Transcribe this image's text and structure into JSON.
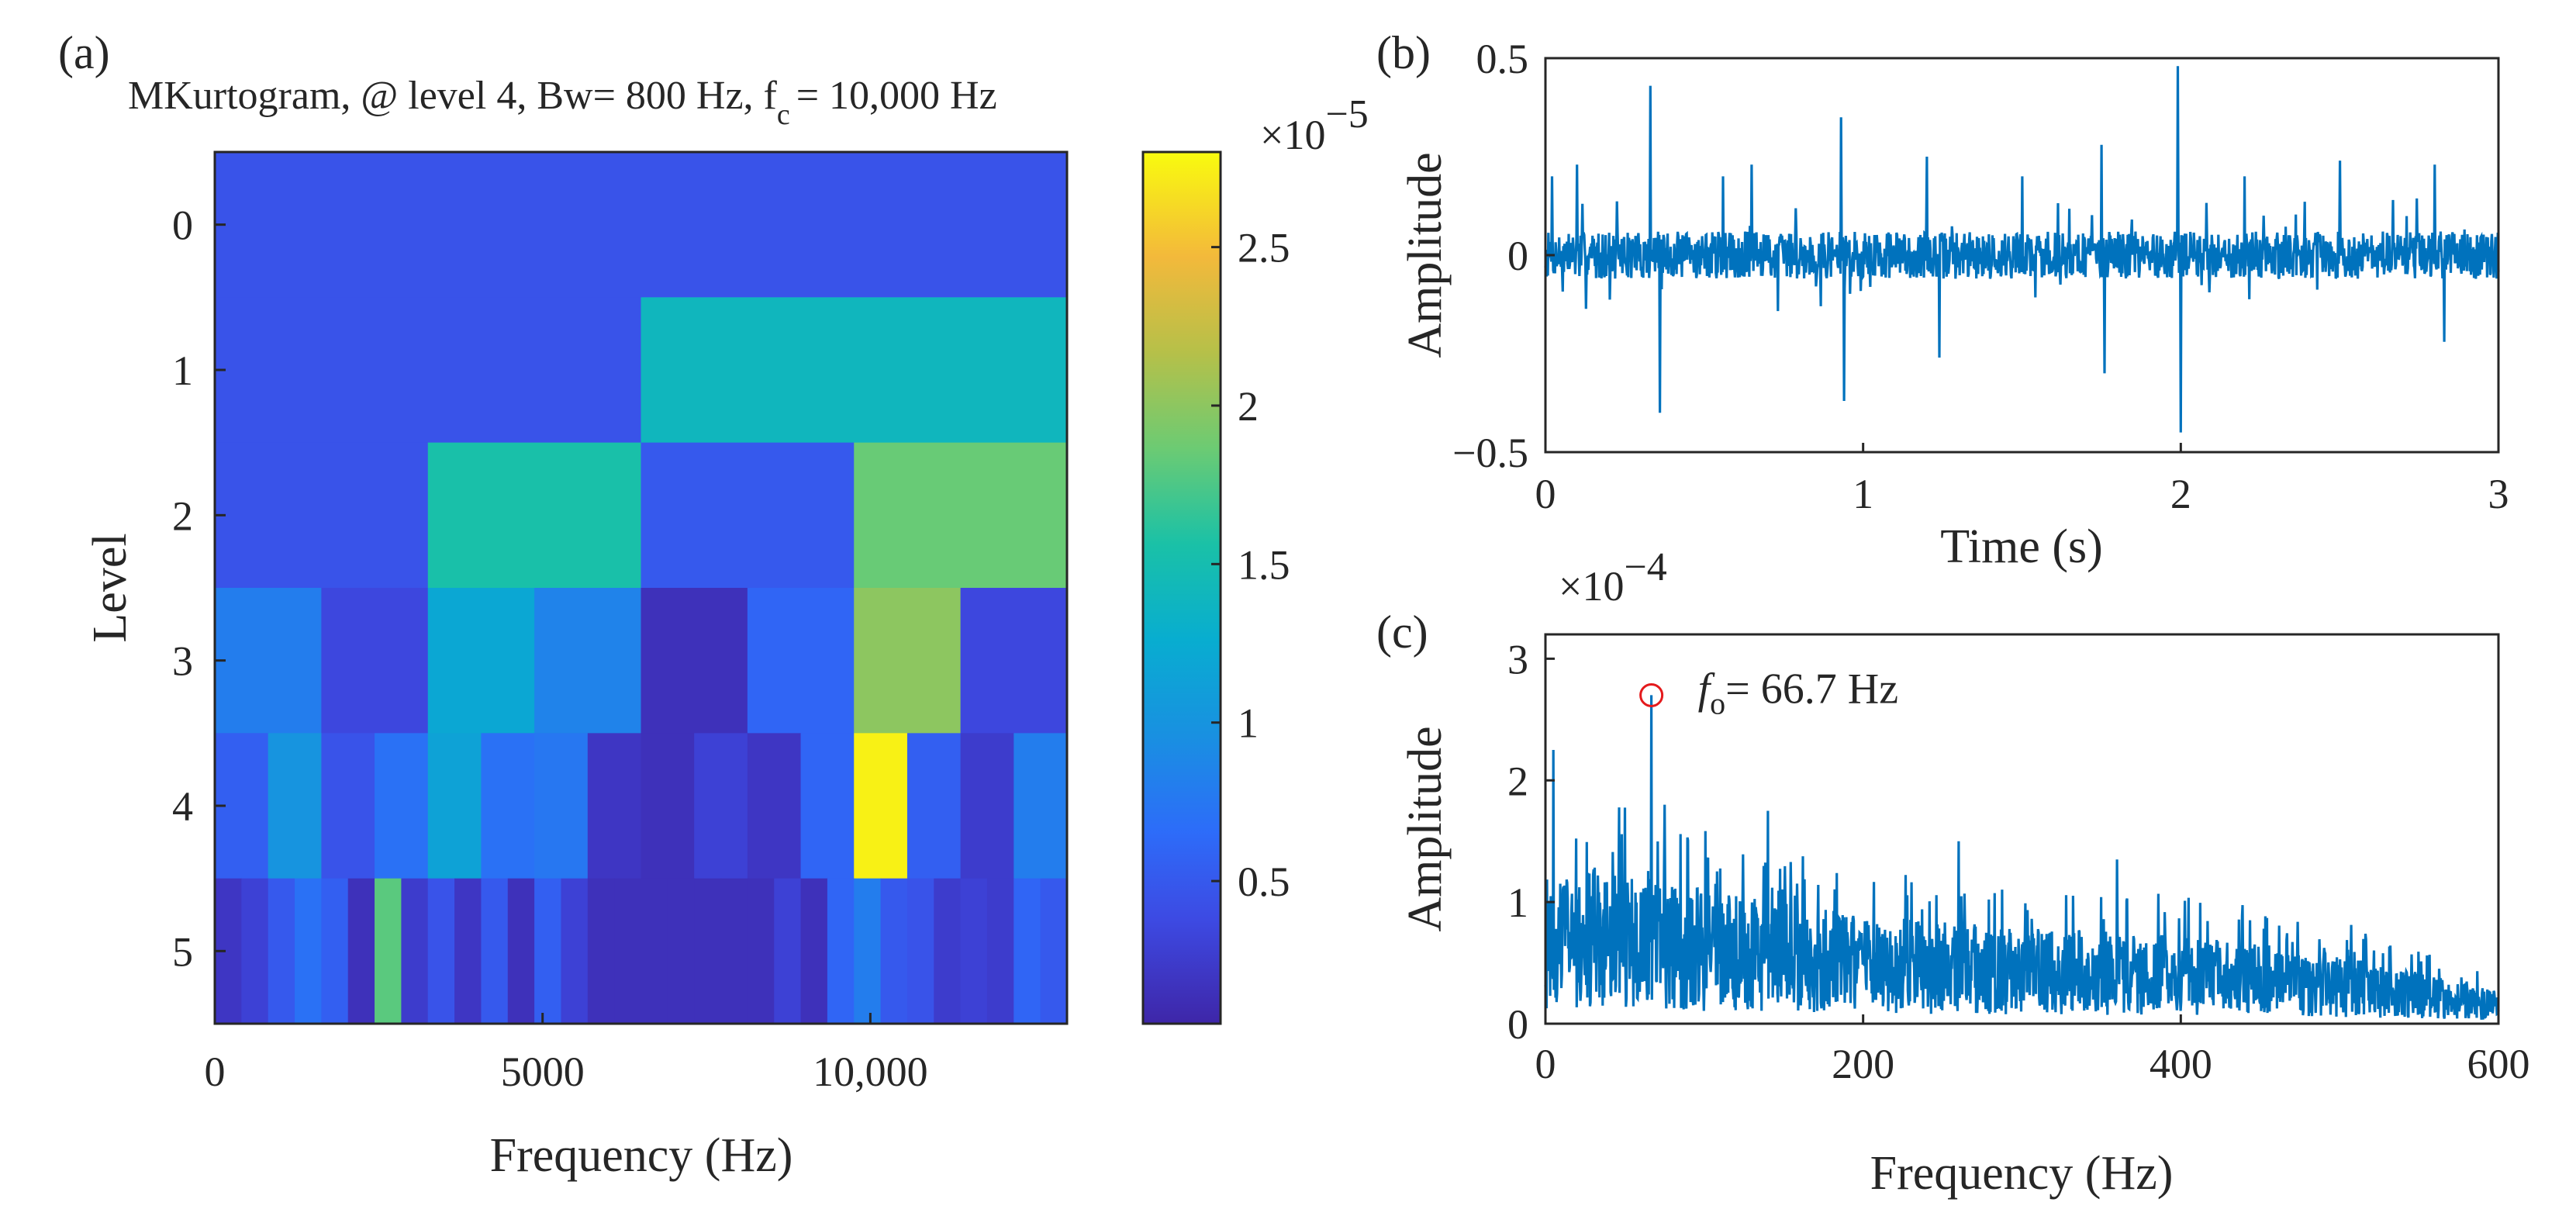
{
  "chart_data": [
    {
      "panel_label": "(a)",
      "type": "heatmap",
      "title": {
        "main": "MKurtogram, @ level 4, Bw= 800 Hz, f",
        "sub": "c",
        "tail": "= 10,000 Hz"
      },
      "xlabel": "Frequency (Hz)",
      "ylabel": "Level",
      "xlim": [
        0,
        13000
      ],
      "xticks": [
        0,
        5000,
        10000
      ],
      "xtick_labels": [
        "0",
        "5000",
        "10,000"
      ],
      "levels": [
        0,
        1,
        2,
        3,
        4,
        5
      ],
      "ytick_labels": [
        "0",
        "1",
        "2",
        "3",
        "4",
        "5"
      ],
      "rows": [
        {
          "level": 0,
          "values": [
            0.45
          ]
        },
        {
          "level": 1,
          "values": [
            0.45,
            1.4
          ]
        },
        {
          "level": 2,
          "values": [
            0.45,
            1.55,
            0.5,
            1.85
          ]
        },
        {
          "level": 3,
          "values": [
            0.8,
            0.35,
            1.2,
            0.85,
            0.15,
            0.6,
            2.0,
            0.35
          ]
        },
        {
          "level": 4,
          "values": [
            0.55,
            1.0,
            0.45,
            0.7,
            1.15,
            0.7,
            0.75,
            0.2,
            0.15,
            0.3,
            0.2,
            0.6,
            2.75,
            0.55,
            0.25,
            0.8
          ]
        },
        {
          "level": 5,
          "values": [
            0.2,
            0.3,
            0.5,
            0.7,
            0.55,
            0.15,
            1.8,
            0.25,
            0.45,
            0.2,
            0.5,
            0.15,
            0.55,
            0.3,
            0.15,
            0.15,
            0.15,
            0.15,
            0.15,
            0.15,
            0.15,
            0.3,
            0.15,
            0.6,
            0.8,
            0.5,
            0.45,
            0.25,
            0.3,
            0.25,
            0.6,
            0.5
          ]
        }
      ],
      "colorbar": {
        "min": 0.05,
        "max": 2.8,
        "ticks": [
          0.5,
          1,
          1.5,
          2,
          2.5
        ],
        "tick_labels": [
          "0.5",
          "1",
          "1.5",
          "2",
          "2.5"
        ],
        "exponent_base": "×10",
        "exponent_power": "−5"
      }
    },
    {
      "panel_label": "(b)",
      "type": "line",
      "xlabel": "Time (s)",
      "ylabel": "Amplitude",
      "xlim": [
        0,
        3
      ],
      "ylim": [
        -0.5,
        0.5
      ],
      "xticks": [
        0,
        1,
        2,
        3
      ],
      "xtick_labels": [
        "0",
        "1",
        "2",
        "3"
      ],
      "yticks": [
        -0.5,
        0,
        0.5
      ],
      "ytick_labels": [
        "−0.5",
        "0",
        "0.5"
      ],
      "noise_amplitude": 0.06,
      "impulses": [
        {
          "t": 0.02,
          "amp": 0.2
        },
        {
          "t": 0.1,
          "amp": 0.23
        },
        {
          "t": 0.33,
          "amp": 0.43
        },
        {
          "t": 0.36,
          "amp": -0.4
        },
        {
          "t": 0.56,
          "amp": 0.2
        },
        {
          "t": 0.65,
          "amp": 0.23
        },
        {
          "t": 0.93,
          "amp": 0.35
        },
        {
          "t": 0.94,
          "amp": -0.37
        },
        {
          "t": 1.2,
          "amp": 0.25
        },
        {
          "t": 1.24,
          "amp": -0.26
        },
        {
          "t": 1.5,
          "amp": 0.2
        },
        {
          "t": 1.75,
          "amp": 0.28
        },
        {
          "t": 1.76,
          "amp": -0.3
        },
        {
          "t": 1.99,
          "amp": 0.48
        },
        {
          "t": 2.0,
          "amp": -0.45
        },
        {
          "t": 2.2,
          "amp": 0.2
        },
        {
          "t": 2.5,
          "amp": 0.24
        },
        {
          "t": 2.8,
          "amp": 0.23
        },
        {
          "t": 2.83,
          "amp": -0.22
        }
      ]
    },
    {
      "panel_label": "(c)",
      "type": "line",
      "xlabel": "Frequency (Hz)",
      "ylabel": "Amplitude",
      "xlim": [
        0,
        600
      ],
      "ylim": [
        0,
        3.2
      ],
      "xticks": [
        0,
        200,
        400,
        600
      ],
      "xtick_labels": [
        "0",
        "200",
        "400",
        "600"
      ],
      "yticks": [
        0,
        1,
        2,
        3
      ],
      "ytick_labels": [
        "0",
        "1",
        "2",
        "3"
      ],
      "exponent_base": "×10",
      "exponent_power": "−4",
      "envelope": [
        {
          "f": 0,
          "v": 0.95
        },
        {
          "f": 20,
          "v": 1.3
        },
        {
          "f": 60,
          "v": 1.15
        },
        {
          "f": 100,
          "v": 1.05
        },
        {
          "f": 200,
          "v": 0.85
        },
        {
          "f": 300,
          "v": 0.75
        },
        {
          "f": 400,
          "v": 0.7
        },
        {
          "f": 500,
          "v": 0.55
        },
        {
          "f": 600,
          "v": 0.25
        }
      ],
      "peaks": [
        {
          "f": 5,
          "v": 2.25
        },
        {
          "f": 66.7,
          "v": 2.7
        },
        {
          "f": 75,
          "v": 1.8
        },
        {
          "f": 140,
          "v": 1.75
        },
        {
          "f": 260,
          "v": 1.5
        },
        {
          "f": 360,
          "v": 1.35
        }
      ],
      "annotation": {
        "symbol": "f",
        "subscript": "o",
        "text": "= 66.7 Hz",
        "x": 66.7,
        "y": 2.7
      }
    }
  ],
  "colors": {
    "line": "#0072BD",
    "marker": "#E41A1C",
    "axes": "#262626"
  }
}
